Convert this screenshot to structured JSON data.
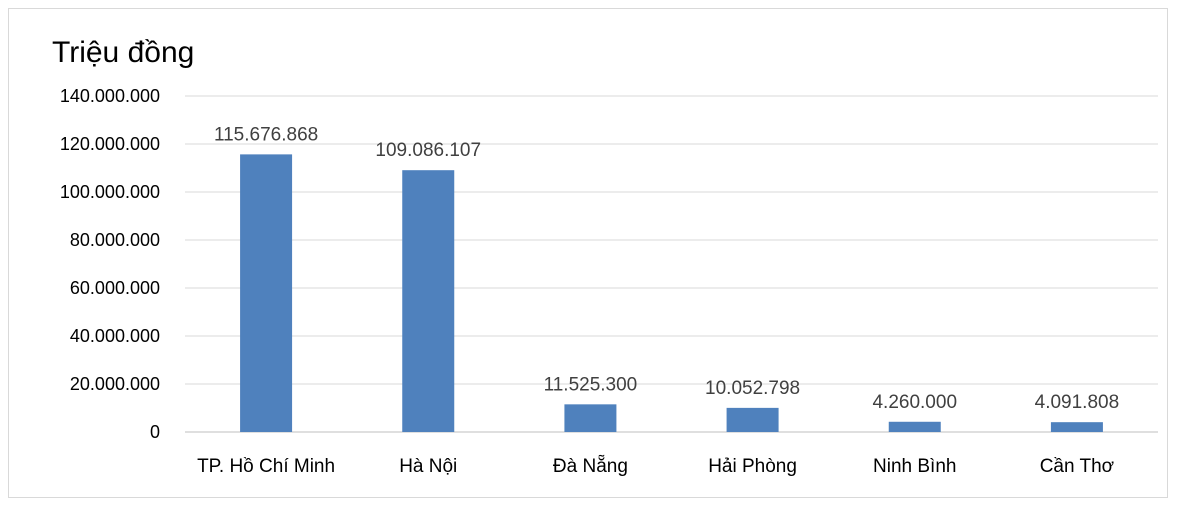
{
  "chart_data": {
    "type": "bar",
    "title": "",
    "unit_label": "Triệu đồng",
    "xlabel": "",
    "ylabel": "",
    "categories": [
      "TP. Hồ Chí Minh",
      "Hà Nội",
      "Đà Nẵng",
      "Hải Phòng",
      "Ninh Bình",
      "Cần Thơ"
    ],
    "values": [
      115676868,
      109086107,
      11525300,
      10052798,
      4260000,
      4091808
    ],
    "data_labels": [
      "115.676.868",
      "109.086.107",
      "11.525.300",
      "10.052.798",
      "4.260.000",
      "4.091.808"
    ],
    "ylim": [
      0,
      140000000
    ],
    "yticks": [
      0,
      20000000,
      40000000,
      60000000,
      80000000,
      100000000,
      120000000,
      140000000
    ],
    "ytick_labels": [
      "0",
      "20.000.000",
      "40.000.000",
      "60.000.000",
      "80.000.000",
      "100.000.000",
      "120.000.000",
      "140.000.000"
    ],
    "grid": true,
    "legend": "none",
    "bar_color": "#4f81bd"
  }
}
